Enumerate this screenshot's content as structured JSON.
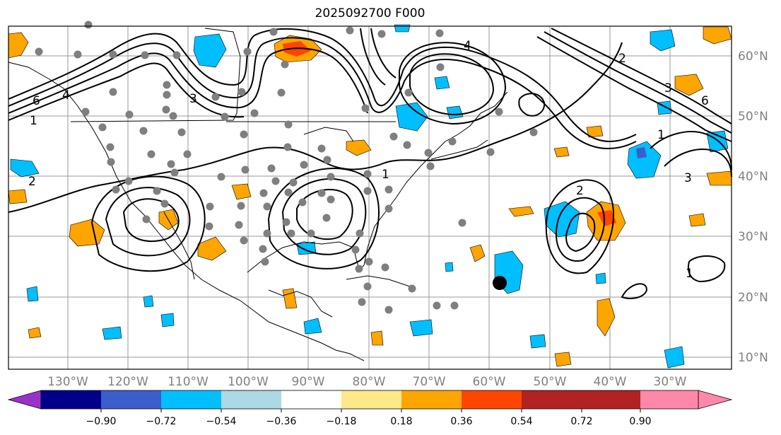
{
  "map": {
    "title": "2025092700 F000",
    "projection": "plate-carree",
    "extent": {
      "lon_min": -140,
      "lon_max": -20,
      "lat_min": 8,
      "lat_max": 65
    },
    "gridlines": true,
    "lon_labels": [
      "130°W",
      "120°W",
      "110°W",
      "100°W",
      "90°W",
      "80°W",
      "70°W",
      "60°W",
      "50°W",
      "40°W",
      "30°W"
    ],
    "lat_labels": [
      "60°N",
      "50°N",
      "40°N",
      "30°N",
      "20°N",
      "10°N"
    ],
    "contour_labels": [
      "6",
      "4",
      "1",
      "2",
      "3",
      "1",
      "2",
      "3",
      "1",
      "1",
      "2",
      "3",
      "6",
      "4"
    ],
    "storm_marker": {
      "lon": -58.5,
      "lat": 22.5
    }
  },
  "colorbar": {
    "tick_labels": [
      "−0.90",
      "−0.72",
      "−0.54",
      "−0.36",
      "−0.18",
      "0.18",
      "0.36",
      "0.54",
      "0.72",
      "0.90"
    ],
    "colors": [
      "#9932cc",
      "#00008b",
      "#3a5fcd",
      "#00bfff",
      "#add8e6",
      "#ffffff",
      "#ffe888",
      "#ffa500",
      "#ff4500",
      "#b22222",
      "#ff88aa"
    ],
    "extend": "both"
  }
}
